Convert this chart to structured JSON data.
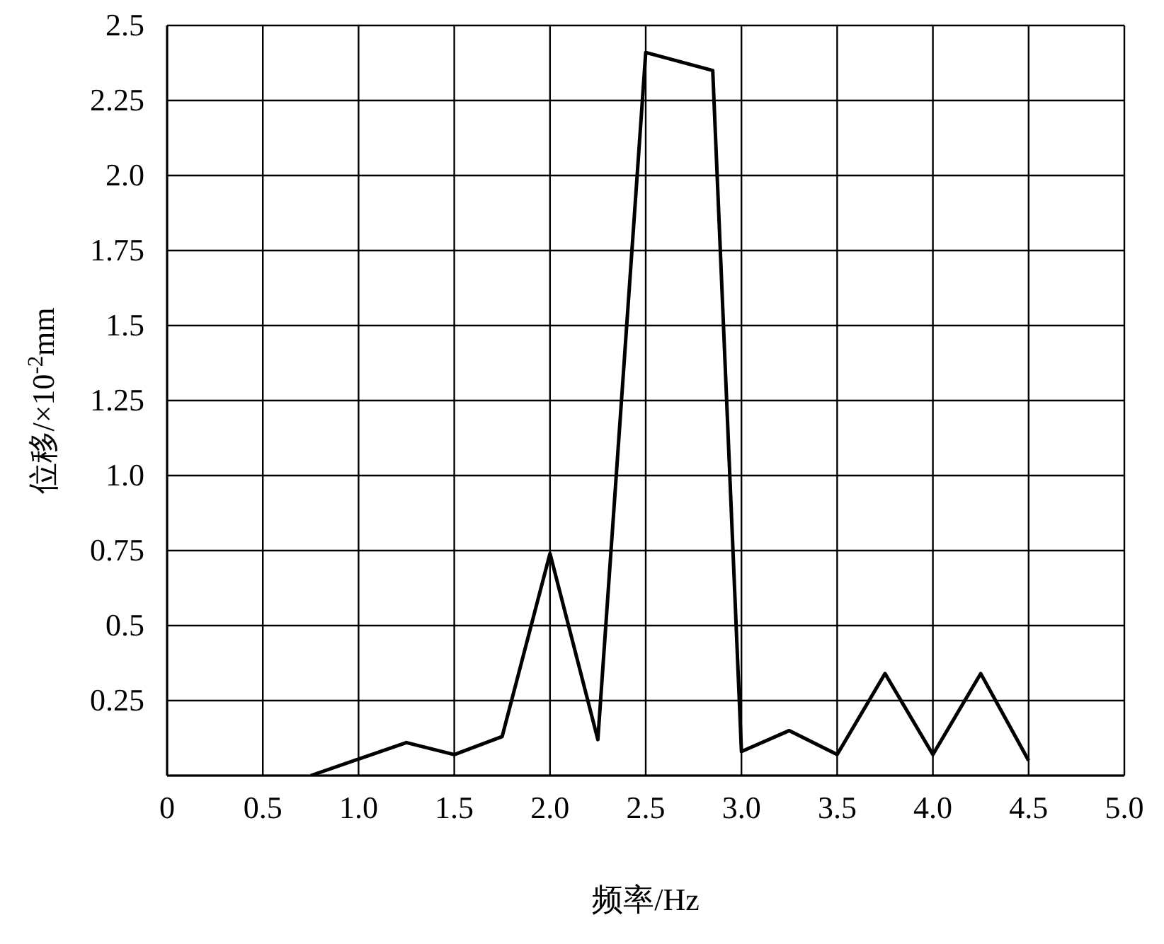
{
  "chart_data": {
    "type": "line",
    "xlabel": "频率/Hz",
    "ylabel": "位移/×10$^{-2}$mm",
    "x": [
      0.75,
      1.25,
      1.5,
      1.75,
      2.0,
      2.25,
      2.5,
      2.85,
      3.0,
      3.25,
      3.5,
      3.75,
      4.0,
      4.25,
      4.5
    ],
    "series": [
      {
        "color": "#000000",
        "values": [
          0,
          0.11,
          0.07,
          0.13,
          0.74,
          0.12,
          2.41,
          2.35,
          0.08,
          0.15,
          0.07,
          0.34,
          0.07,
          0.34,
          0.05
        ]
      }
    ],
    "xlim": [
      0,
      5
    ],
    "xticks": [
      0,
      0.5,
      {
        "value": 1,
        "label": "1.0"
      },
      1.5,
      {
        "value": 2,
        "label": "2.0"
      },
      2.5,
      {
        "value": 3,
        "label": "3.0"
      },
      3.5,
      {
        "value": 4,
        "label": "4.0"
      },
      4.5,
      {
        "value": 5,
        "label": "5.0"
      }
    ],
    "ylim": [
      0,
      2.5
    ],
    "yticks": [
      {
        "value": 0,
        "label": null
      },
      0.25,
      0.5,
      0.75,
      {
        "value": 1,
        "label": "1.0"
      },
      1.25,
      1.5,
      1.75,
      {
        "value": 2,
        "label": "2.0"
      },
      2.25,
      2.5
    ],
    "grid": true,
    "marker": "none",
    "line_style": "solid",
    "legend": false
  }
}
